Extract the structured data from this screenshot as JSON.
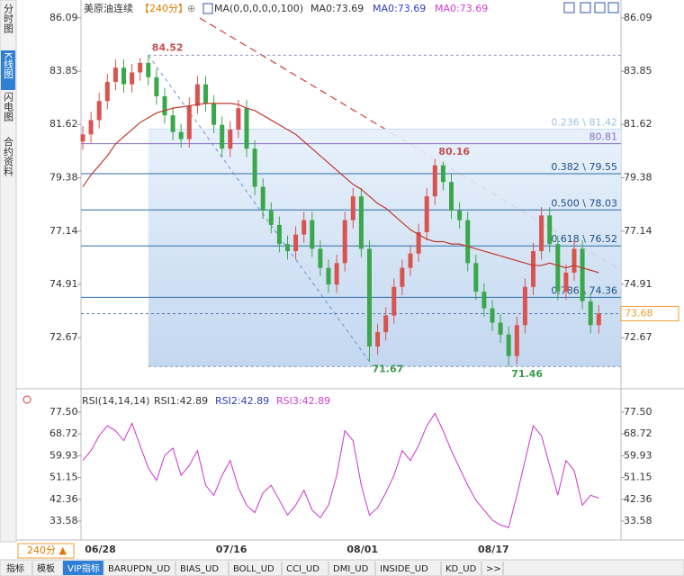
{
  "sidebar": [
    "分时图",
    "K线图",
    "闪电图",
    "合约资料"
  ],
  "toolbar": [
    "指标",
    "模板",
    "VIP指标",
    "BARUPDN_UD",
    "BIAS_UD",
    "BOLL_UD",
    "CCI_UD",
    "DMI_UD",
    "INSIDE_UD",
    "KD_UD",
    ">>"
  ],
  "period_button": "240分 ▲",
  "chart_data": {
    "type": "candlestick",
    "title": "美原油连续",
    "period": "【240分】",
    "indicator": "MA(0,0,0,0,0,100)",
    "ma_labels": [
      {
        "text": "MA0:73.69",
        "color": "#333333"
      },
      {
        "text": "MA0:73.69",
        "color": "#2a3fc0"
      },
      {
        "text": "MA0:73.69",
        "color": "#d23cd2"
      }
    ],
    "categories": [
      null,
      null,
      "06/28",
      null,
      null,
      null,
      null,
      null,
      null,
      null,
      null,
      null,
      null,
      null,
      null,
      null,
      null,
      null,
      "07/16",
      null,
      null,
      null,
      null,
      null,
      null,
      null,
      null,
      null,
      null,
      null,
      null,
      null,
      null,
      null,
      "08/01",
      null,
      null,
      null,
      null,
      null,
      null,
      null,
      null,
      null,
      null,
      null,
      null,
      null,
      null,
      null,
      "08/17",
      null,
      null,
      null,
      null,
      null,
      null,
      null,
      null,
      null,
      null,
      null,
      null,
      null
    ],
    "open": [
      80.9,
      81.2,
      81.8,
      82.6,
      83.4,
      84.0,
      83.3,
      83.8,
      84.2,
      83.6,
      82.8,
      82.0,
      81.3,
      81.0,
      82.4,
      83.3,
      82.5,
      81.6,
      80.6,
      81.4,
      82.3,
      80.6,
      79.0,
      78.0,
      77.4,
      76.6,
      76.3,
      77.0,
      77.6,
      76.4,
      75.6,
      74.9,
      75.8,
      77.6,
      78.6,
      76.4,
      72.3,
      72.9,
      73.6,
      74.8,
      75.6,
      76.2,
      77.1,
      78.6,
      79.9,
      79.2,
      78.0,
      77.6,
      75.8,
      74.6,
      73.9,
      73.3,
      72.8,
      71.9,
      73.2,
      74.8,
      76.3,
      77.8,
      76.6,
      74.6,
      75.4,
      76.4,
      74.2,
      73.2
    ],
    "high": [
      81.55,
      82.15,
      82.95,
      83.75,
      84.35,
      84.35,
      84.15,
      84.4,
      84.52,
      83.95,
      83.15,
      82.35,
      81.65,
      82.75,
      83.65,
      83.65,
      82.85,
      81.95,
      81.75,
      82.65,
      82.65,
      80.95,
      79.35,
      78.35,
      77.75,
      76.95,
      77.35,
      77.95,
      77.95,
      76.75,
      75.95,
      76.15,
      77.95,
      78.95,
      78.95,
      76.75,
      73.25,
      73.95,
      75.15,
      75.95,
      76.55,
      77.45,
      78.95,
      80.16,
      80.05,
      79.55,
      78.35,
      77.95,
      76.15,
      74.95,
      74.25,
      73.65,
      73.15,
      73.55,
      75.15,
      76.65,
      78.15,
      78.15,
      76.95,
      75.75,
      76.75,
      76.75,
      74.55,
      74.03
    ],
    "low": [
      80.55,
      80.85,
      81.45,
      82.25,
      83.05,
      82.95,
      82.95,
      83.45,
      83.25,
      82.45,
      81.65,
      80.95,
      80.65,
      80.65,
      82.05,
      82.15,
      81.25,
      80.25,
      80.25,
      81.05,
      80.25,
      78.65,
      77.65,
      77.05,
      76.25,
      75.95,
      75.95,
      76.65,
      76.05,
      75.25,
      74.55,
      74.55,
      75.45,
      77.25,
      76.05,
      71.67,
      71.95,
      72.55,
      73.25,
      74.45,
      75.25,
      75.85,
      76.75,
      78.25,
      78.85,
      77.65,
      77.25,
      75.45,
      74.25,
      73.55,
      72.95,
      72.45,
      71.46,
      71.55,
      72.85,
      74.45,
      75.95,
      76.25,
      74.25,
      74.25,
      75.05,
      73.85,
      72.85,
      72.85
    ],
    "close": [
      81.2,
      81.8,
      82.6,
      83.4,
      84.0,
      83.3,
      83.8,
      84.2,
      83.6,
      82.8,
      82.0,
      81.3,
      81.0,
      82.4,
      83.3,
      82.5,
      81.6,
      80.6,
      81.4,
      82.3,
      80.6,
      79.0,
      78.0,
      77.4,
      76.6,
      76.3,
      77.0,
      77.6,
      76.4,
      75.6,
      74.9,
      75.8,
      77.6,
      78.6,
      76.4,
      72.3,
      72.9,
      73.6,
      74.8,
      75.6,
      76.2,
      77.1,
      78.6,
      79.9,
      79.2,
      78.0,
      77.6,
      75.8,
      74.6,
      73.9,
      73.3,
      72.8,
      71.9,
      73.2,
      74.8,
      76.3,
      77.8,
      76.6,
      74.6,
      75.4,
      76.4,
      74.2,
      73.2,
      73.68
    ],
    "high_labels": [
      null,
      null,
      null,
      null,
      null,
      null,
      null,
      null,
      "84.52",
      null,
      null,
      null,
      null,
      null,
      null,
      null,
      null,
      null,
      null,
      null,
      null,
      null,
      null,
      null,
      null,
      null,
      null,
      null,
      null,
      null,
      null,
      null,
      null,
      null,
      null,
      null,
      null,
      null,
      null,
      null,
      null,
      null,
      null,
      "80.16",
      null,
      null,
      null,
      null,
      null,
      null,
      null,
      null,
      null,
      null,
      null,
      null,
      null,
      null,
      null,
      null,
      null,
      null,
      null,
      null
    ],
    "low_labels": [
      null,
      null,
      null,
      null,
      null,
      null,
      null,
      null,
      null,
      null,
      null,
      null,
      null,
      null,
      null,
      null,
      null,
      null,
      null,
      null,
      null,
      null,
      null,
      null,
      null,
      null,
      null,
      null,
      null,
      null,
      null,
      null,
      null,
      null,
      null,
      "71.67",
      null,
      null,
      null,
      null,
      null,
      null,
      null,
      null,
      null,
      null,
      null,
      null,
      null,
      null,
      null,
      null,
      "71.46",
      null,
      null,
      null,
      null,
      null,
      null,
      null,
      null,
      null,
      null,
      null
    ],
    "up_color": "#d9534f",
    "down_color": "#3aa84a",
    "ma": {
      "color": "#c0392b",
      "values": [
        79.0,
        79.5,
        79.9,
        80.3,
        80.8,
        81.1,
        81.4,
        81.7,
        81.9,
        82.1,
        82.2,
        82.3,
        82.35,
        82.4,
        82.45,
        82.5,
        82.5,
        82.5,
        82.5,
        82.45,
        82.3,
        82.2,
        82.0,
        81.8,
        81.6,
        81.4,
        81.2,
        80.9,
        80.6,
        80.3,
        80.0,
        79.7,
        79.4,
        79.1,
        78.9,
        78.6,
        78.3,
        78.1,
        77.8,
        77.5,
        77.2,
        77.0,
        76.8,
        76.7,
        76.7,
        76.6,
        76.6,
        76.5,
        76.4,
        76.3,
        76.2,
        76.1,
        76.0,
        75.9,
        75.8,
        75.7,
        75.7,
        75.8,
        75.7,
        75.6,
        75.7,
        75.6,
        75.5,
        75.4
      ]
    },
    "ylim": [
      70.6,
      86.65
    ],
    "yticks": [
      86.09,
      83.85,
      81.62,
      79.38,
      77.14,
      74.91,
      72.67
    ],
    "fib_levels": [
      {
        "value": 81.42,
        "label": "0.236 \\ 81.42"
      },
      {
        "value": 79.55,
        "label": "0.382 \\ 79.55"
      },
      {
        "value": 78.03,
        "label": "0.500 \\ 78.03"
      },
      {
        "value": 76.52,
        "label": "0.618 \\ 76.52"
      },
      {
        "value": 74.36,
        "label": "0.786 \\ 74.36"
      }
    ],
    "ref_line": {
      "value": 80.81,
      "label": "80.81",
      "color": "#8a6fc8"
    },
    "last": {
      "value": 73.68,
      "label": "73.68",
      "color": "#f39c32"
    },
    "rsi": {
      "title": "RSI(14,14,14)",
      "labels": [
        {
          "text": "RSI1:42.89",
          "color": "#333333"
        },
        {
          "text": "RSI2:42.89",
          "color": "#2a3fc0"
        },
        {
          "text": "RSI3:42.89",
          "color": "#d23cd2"
        }
      ],
      "color": "#cc33cc",
      "values": [
        58,
        62,
        68,
        72,
        70,
        66,
        73,
        64,
        55,
        50,
        60,
        63,
        52,
        56,
        62,
        48,
        44,
        52,
        58,
        47,
        40,
        37,
        45,
        48,
        42,
        36,
        40,
        46,
        38,
        35,
        40,
        52,
        70,
        66,
        48,
        36,
        39,
        45,
        52,
        62,
        58,
        64,
        72,
        77,
        70,
        62,
        55,
        48,
        42,
        38,
        34,
        32,
        31,
        44,
        58,
        72,
        68,
        56,
        44,
        58,
        54,
        40,
        44,
        42.89
      ],
      "ylim": [
        26.7,
        84.0
      ],
      "yticks": [
        {
          "value": 77.5,
          "label": "77.50"
        },
        {
          "value": 68.72,
          "label": "68.72"
        },
        {
          "value": 59.93,
          "label": "59.93"
        },
        {
          "value": 51.15,
          "label": "51.15"
        },
        {
          "value": 42.36,
          "label": "42.36"
        },
        {
          "value": 33.58,
          "label": "33.58"
        }
      ]
    }
  }
}
